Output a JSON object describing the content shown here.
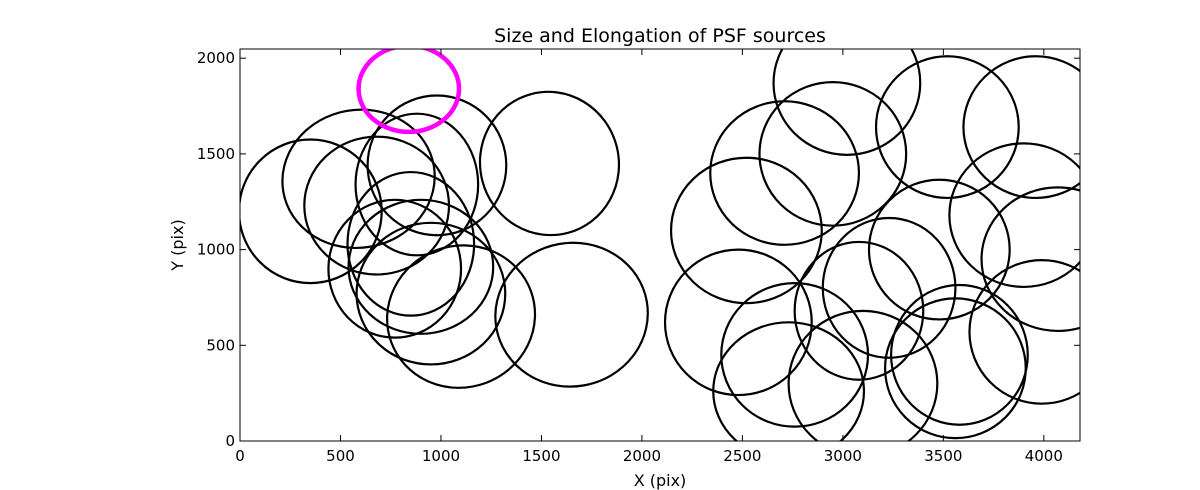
{
  "chart_data": {
    "type": "scatter",
    "title": "Size and Elongation of PSF sources",
    "xlabel": "X (pix)",
    "ylabel": "Y (pix)",
    "xlim": [
      0,
      4180
    ],
    "ylim": [
      0,
      2048
    ],
    "xticks": [
      0,
      500,
      1000,
      1500,
      2000,
      2500,
      3000,
      3500,
      4000
    ],
    "yticks": [
      0,
      500,
      1000,
      1500,
      2000
    ],
    "grid": false,
    "legend": "none",
    "colors": {
      "source": "#000000",
      "reference": "#ff00ff"
    },
    "reference_marker": {
      "x": 840,
      "y": 1840,
      "rx": 250,
      "ry": 225,
      "angle": 0
    },
    "sources": [
      {
        "x": 590,
        "y": 1370,
        "rx": 380,
        "ry": 360,
        "angle": 10
      },
      {
        "x": 980,
        "y": 1440,
        "rx": 345,
        "ry": 365,
        "angle": 0
      },
      {
        "x": 350,
        "y": 1200,
        "rx": 355,
        "ry": 375,
        "angle": 0
      },
      {
        "x": 680,
        "y": 1230,
        "rx": 360,
        "ry": 360,
        "angle": 0
      },
      {
        "x": 880,
        "y": 1340,
        "rx": 305,
        "ry": 370,
        "angle": 0
      },
      {
        "x": 1540,
        "y": 1450,
        "rx": 345,
        "ry": 375,
        "angle": 15
      },
      {
        "x": 850,
        "y": 1030,
        "rx": 315,
        "ry": 375,
        "angle": 0
      },
      {
        "x": 900,
        "y": 910,
        "rx": 360,
        "ry": 350,
        "angle": 0
      },
      {
        "x": 770,
        "y": 900,
        "rx": 330,
        "ry": 360,
        "angle": 0
      },
      {
        "x": 950,
        "y": 770,
        "rx": 370,
        "ry": 370,
        "angle": 0
      },
      {
        "x": 1100,
        "y": 650,
        "rx": 370,
        "ry": 370,
        "angle": 20
      },
      {
        "x": 1650,
        "y": 660,
        "rx": 380,
        "ry": 375,
        "angle": 10
      },
      {
        "x": 2710,
        "y": 1400,
        "rx": 370,
        "ry": 375,
        "angle": 0
      },
      {
        "x": 2520,
        "y": 1100,
        "rx": 375,
        "ry": 380,
        "angle": 0
      },
      {
        "x": 2950,
        "y": 1500,
        "rx": 365,
        "ry": 375,
        "angle": 0
      },
      {
        "x": 3020,
        "y": 1870,
        "rx": 365,
        "ry": 375,
        "angle": 0
      },
      {
        "x": 3520,
        "y": 1640,
        "rx": 355,
        "ry": 370,
        "angle": 0
      },
      {
        "x": 3960,
        "y": 1640,
        "rx": 360,
        "ry": 370,
        "angle": 0
      },
      {
        "x": 3900,
        "y": 1180,
        "rx": 370,
        "ry": 375,
        "angle": 0
      },
      {
        "x": 4070,
        "y": 950,
        "rx": 380,
        "ry": 375,
        "angle": 0
      },
      {
        "x": 3480,
        "y": 1000,
        "rx": 350,
        "ry": 365,
        "angle": 0
      },
      {
        "x": 3230,
        "y": 800,
        "rx": 330,
        "ry": 365,
        "angle": 0
      },
      {
        "x": 3080,
        "y": 680,
        "rx": 320,
        "ry": 360,
        "angle": 0
      },
      {
        "x": 3990,
        "y": 570,
        "rx": 360,
        "ry": 375,
        "angle": 0
      },
      {
        "x": 3560,
        "y": 380,
        "rx": 350,
        "ry": 365,
        "angle": 0
      },
      {
        "x": 3580,
        "y": 450,
        "rx": 340,
        "ry": 365,
        "angle": 0
      },
      {
        "x": 2480,
        "y": 620,
        "rx": 365,
        "ry": 380,
        "angle": 0
      },
      {
        "x": 2760,
        "y": 450,
        "rx": 365,
        "ry": 375,
        "angle": 0
      },
      {
        "x": 2730,
        "y": 260,
        "rx": 375,
        "ry": 360,
        "angle": 0
      },
      {
        "x": 3100,
        "y": 300,
        "rx": 370,
        "ry": 380,
        "angle": 0
      }
    ]
  }
}
